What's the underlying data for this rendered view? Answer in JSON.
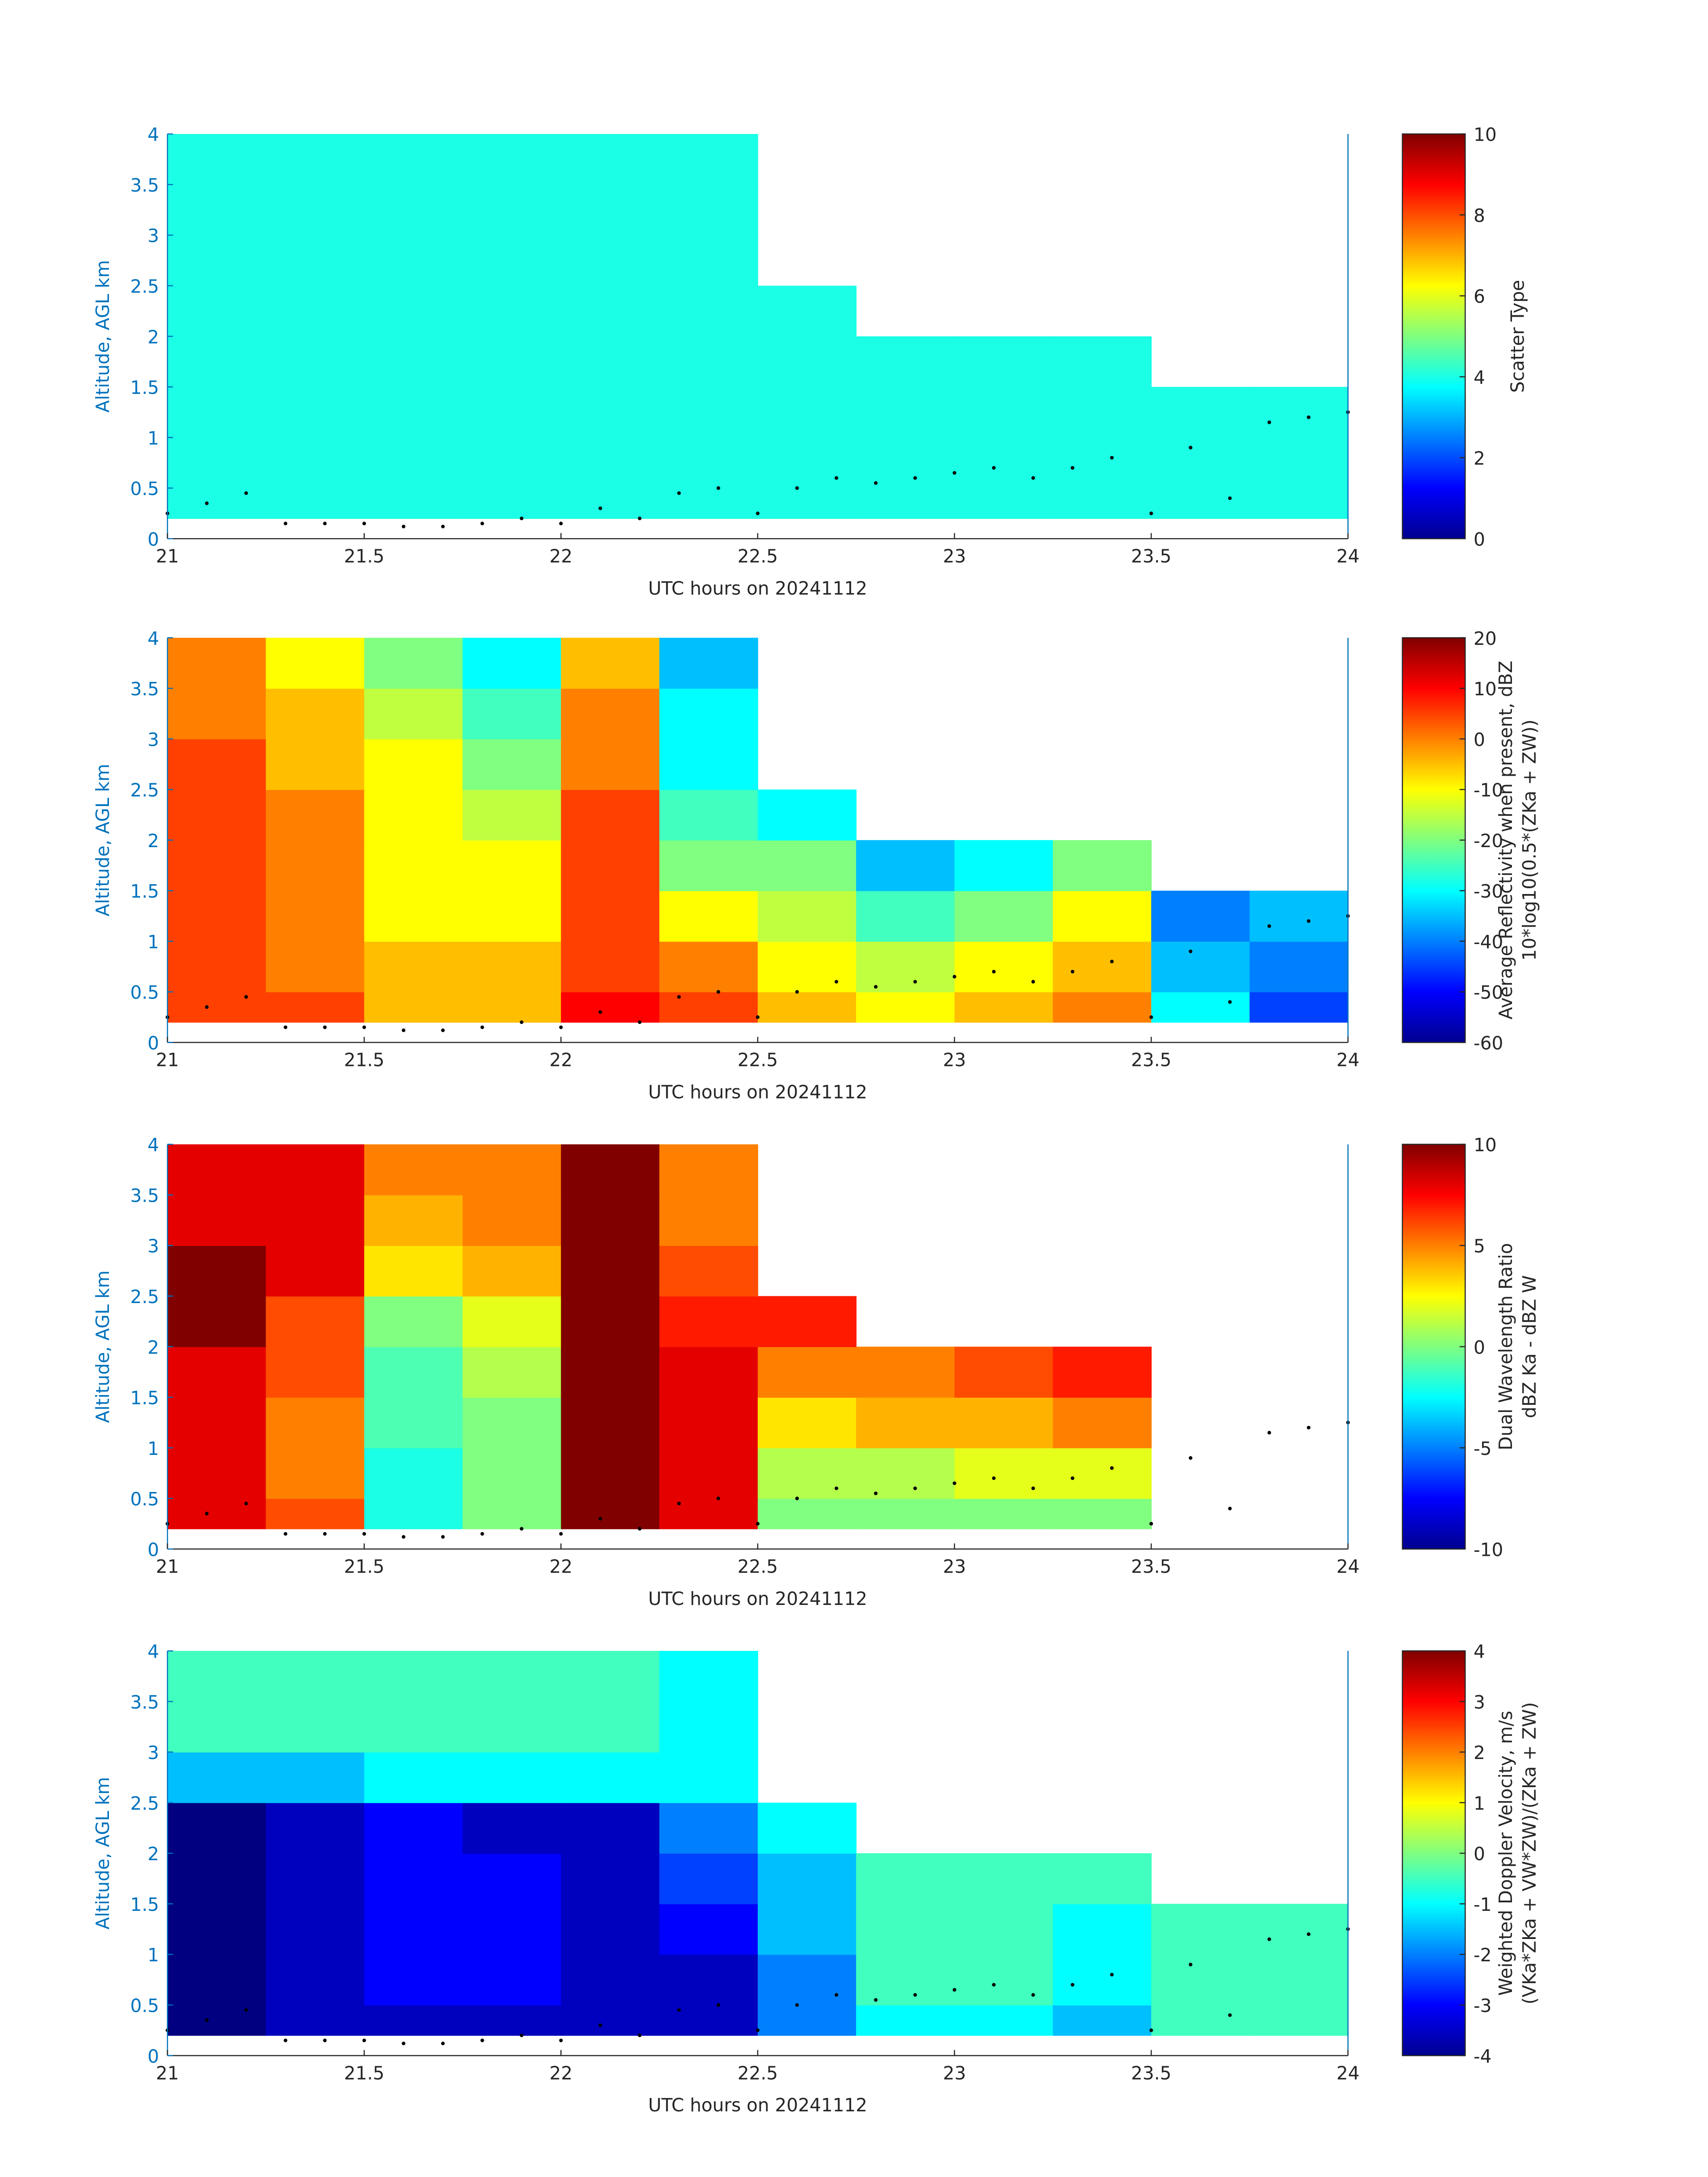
{
  "chart_data": [
    {
      "type": "heatmap",
      "xlabel": "UTC hours on 20241112",
      "ylabel": "Altitude, AGL km",
      "colorbar_label": [
        "Scatter Type"
      ],
      "xlim": [
        21,
        24
      ],
      "xticks": [
        21,
        21.5,
        22,
        22.5,
        23,
        23.5,
        24
      ],
      "ylim": [
        0,
        4
      ],
      "yticks": [
        0,
        0.5,
        1,
        1.5,
        2,
        2.5,
        3,
        3.5,
        4
      ],
      "clim": [
        0,
        10
      ],
      "cticks": [
        0,
        2,
        4,
        6,
        8,
        10
      ],
      "colormap": "jet",
      "xbins": [
        21,
        21.25,
        21.5,
        21.75,
        22,
        22.25,
        22.5,
        22.75,
        23,
        23.25,
        23.5,
        23.75,
        24
      ],
      "ybins": [
        0.2,
        0.5,
        1,
        1.5,
        2,
        2.5,
        3,
        3.5,
        4
      ],
      "z": [
        [
          4,
          4,
          4,
          4,
          4,
          4,
          4,
          4,
          4,
          4,
          4,
          4
        ],
        [
          4,
          4,
          4,
          4,
          4,
          4,
          4,
          4,
          4,
          4,
          4,
          4
        ],
        [
          4,
          4,
          4,
          4,
          4,
          4,
          4,
          4,
          4,
          4,
          4,
          4
        ],
        [
          4,
          4,
          4,
          4,
          4,
          4,
          4,
          4,
          4,
          4,
          null,
          null
        ],
        [
          4,
          4,
          4,
          4,
          4,
          4,
          4,
          null,
          null,
          null,
          null,
          null
        ],
        [
          4,
          4,
          4,
          4,
          4,
          4,
          null,
          null,
          null,
          null,
          null,
          null
        ],
        [
          4,
          4,
          4,
          4,
          4,
          4,
          null,
          null,
          null,
          null,
          null,
          null
        ],
        [
          4,
          4,
          4,
          4,
          4,
          4,
          null,
          null,
          null,
          null,
          null,
          null
        ]
      ],
      "point_color": "#000000",
      "points_x": [
        21,
        21.1,
        21.2,
        21.3,
        21.4,
        21.5,
        21.6,
        21.7,
        21.8,
        21.9,
        22,
        22.1,
        22.2,
        22.3,
        22.4,
        22.5,
        22.6,
        22.7,
        22.8,
        22.9,
        23,
        23.1,
        23.2,
        23.3,
        23.4,
        23.5,
        23.6,
        23.7,
        23.8,
        23.9,
        24
      ],
      "points_y": [
        0.25,
        0.35,
        0.45,
        0.15,
        0.15,
        0.15,
        0.12,
        0.12,
        0.15,
        0.2,
        0.15,
        0.3,
        0.2,
        0.45,
        0.5,
        0.25,
        0.5,
        0.6,
        0.55,
        0.6,
        0.65,
        0.7,
        0.6,
        0.7,
        0.8,
        0.25,
        0.9,
        0.4,
        1.15,
        1.2,
        1.25
      ]
    },
    {
      "type": "heatmap",
      "xlabel": "UTC hours on 20241112",
      "ylabel": "Altitude, AGL km",
      "colorbar_label": [
        "Average Reflectivity when present, dBZ",
        "10*log10(0.5*(ZKa + ZW))"
      ],
      "xlim": [
        21,
        24
      ],
      "xticks": [
        21,
        21.5,
        22,
        22.5,
        23,
        23.5,
        24
      ],
      "ylim": [
        0,
        4
      ],
      "yticks": [
        0,
        0.5,
        1,
        1.5,
        2,
        2.5,
        3,
        3.5,
        4
      ],
      "clim": [
        -60,
        20
      ],
      "cticks": [
        -60,
        -50,
        -40,
        -30,
        -20,
        -10,
        0,
        10,
        20
      ],
      "colormap": "jet",
      "xbins": [
        21,
        21.25,
        21.5,
        21.75,
        22,
        22.25,
        22.5,
        22.75,
        23,
        23.25,
        23.5,
        23.75,
        24
      ],
      "ybins": [
        0.2,
        0.5,
        1,
        1.5,
        2,
        2.5,
        3,
        3.5,
        4
      ],
      "z": [
        [
          5,
          5,
          -5,
          -5,
          10,
          5,
          -5,
          -10,
          -5,
          0,
          -30,
          -45
        ],
        [
          5,
          0,
          -5,
          -5,
          5,
          0,
          -10,
          -15,
          -10,
          -5,
          -35,
          -40
        ],
        [
          5,
          0,
          -10,
          -10,
          5,
          -10,
          -15,
          -25,
          -20,
          -10,
          -40,
          -35
        ],
        [
          5,
          0,
          -10,
          -10,
          5,
          -20,
          -20,
          -35,
          -30,
          -20,
          null,
          null
        ],
        [
          5,
          0,
          -10,
          -15,
          5,
          -25,
          -30,
          null,
          null,
          null,
          null,
          null
        ],
        [
          5,
          -5,
          -10,
          -20,
          0,
          -30,
          null,
          null,
          null,
          null,
          null,
          null
        ],
        [
          0,
          -5,
          -15,
          -25,
          0,
          -30,
          null,
          null,
          null,
          null,
          null,
          null
        ],
        [
          0,
          -10,
          -20,
          -30,
          -5,
          -35,
          null,
          null,
          null,
          null,
          null,
          null
        ]
      ],
      "point_color": "#000000",
      "points_x": [
        21,
        21.1,
        21.2,
        21.3,
        21.4,
        21.5,
        21.6,
        21.7,
        21.8,
        21.9,
        22,
        22.1,
        22.2,
        22.3,
        22.4,
        22.5,
        22.6,
        22.7,
        22.8,
        22.9,
        23,
        23.1,
        23.2,
        23.3,
        23.4,
        23.5,
        23.6,
        23.7,
        23.8,
        23.9,
        24
      ],
      "points_y": [
        0.25,
        0.35,
        0.45,
        0.15,
        0.15,
        0.15,
        0.12,
        0.12,
        0.15,
        0.2,
        0.15,
        0.3,
        0.2,
        0.45,
        0.5,
        0.25,
        0.5,
        0.6,
        0.55,
        0.6,
        0.65,
        0.7,
        0.6,
        0.7,
        0.8,
        0.25,
        0.9,
        0.4,
        1.15,
        1.2,
        1.25
      ]
    },
    {
      "type": "heatmap",
      "xlabel": "UTC hours on 20241112",
      "ylabel": "Altitude, AGL km",
      "colorbar_label": [
        "Dual Wavelength Ratio",
        "dBZ Ka - dBZ W"
      ],
      "xlim": [
        21,
        24
      ],
      "xticks": [
        21,
        21.5,
        22,
        22.5,
        23,
        23.5,
        24
      ],
      "ylim": [
        0,
        4
      ],
      "yticks": [
        0,
        0.5,
        1,
        1.5,
        2,
        2.5,
        3,
        3.5,
        4
      ],
      "clim": [
        -10,
        10
      ],
      "cticks": [
        -10,
        -5,
        0,
        5,
        10
      ],
      "colormap": "jet",
      "xbins": [
        21,
        21.25,
        21.5,
        21.75,
        22,
        22.25,
        22.5,
        22.75,
        23,
        23.25,
        23.5,
        23.75,
        24
      ],
      "ybins": [
        0.2,
        0.5,
        1,
        1.5,
        2,
        2.5,
        3,
        3.5,
        4
      ],
      "z": [
        [
          8,
          6,
          -2,
          0,
          10,
          8,
          0,
          0,
          0,
          0,
          null,
          null
        ],
        [
          8,
          5,
          -2,
          0,
          10,
          8,
          1,
          1,
          2,
          2,
          null,
          null
        ],
        [
          8,
          5,
          -1,
          0,
          10,
          8,
          3,
          4,
          4,
          5,
          null,
          null
        ],
        [
          8,
          6,
          -1,
          1,
          10,
          8,
          5,
          5,
          6,
          7,
          null,
          null
        ],
        [
          10,
          6,
          0,
          2,
          10,
          7,
          7,
          null,
          null,
          null,
          null,
          null
        ],
        [
          10,
          8,
          3,
          4,
          10,
          6,
          null,
          null,
          null,
          null,
          null,
          null
        ],
        [
          8,
          8,
          4,
          5,
          10,
          5,
          null,
          null,
          null,
          null,
          null,
          null
        ],
        [
          8,
          8,
          5,
          5,
          10,
          5,
          null,
          null,
          null,
          null,
          null,
          null
        ]
      ],
      "point_color": "#000000",
      "points_x": [
        21,
        21.1,
        21.2,
        21.3,
        21.4,
        21.5,
        21.6,
        21.7,
        21.8,
        21.9,
        22,
        22.1,
        22.2,
        22.3,
        22.4,
        22.5,
        22.6,
        22.7,
        22.8,
        22.9,
        23,
        23.1,
        23.2,
        23.3,
        23.4,
        23.5,
        23.6,
        23.7,
        23.8,
        23.9,
        24
      ],
      "points_y": [
        0.25,
        0.35,
        0.45,
        0.15,
        0.15,
        0.15,
        0.12,
        0.12,
        0.15,
        0.2,
        0.15,
        0.3,
        0.2,
        0.45,
        0.5,
        0.25,
        0.5,
        0.6,
        0.55,
        0.6,
        0.65,
        0.7,
        0.6,
        0.7,
        0.8,
        0.25,
        0.9,
        0.4,
        1.15,
        1.2,
        1.25
      ]
    },
    {
      "type": "heatmap",
      "xlabel": "UTC hours on 20241112",
      "ylabel": "Altitude, AGL km",
      "colorbar_label": [
        "Weighted Doppler Velocity, m/s",
        "(VKa*ZKa + VW*ZW)/(ZKa + ZW)"
      ],
      "xlim": [
        21,
        24
      ],
      "xticks": [
        21,
        21.5,
        22,
        22.5,
        23,
        23.5,
        24
      ],
      "ylim": [
        0,
        4
      ],
      "yticks": [
        0,
        0.5,
        1,
        1.5,
        2,
        2.5,
        3,
        3.5,
        4
      ],
      "clim": [
        -4,
        4
      ],
      "cticks": [
        -4,
        -3,
        -2,
        -1,
        0,
        1,
        2,
        3,
        4
      ],
      "colormap": "jet",
      "xbins": [
        21,
        21.25,
        21.5,
        21.75,
        22,
        22.25,
        22.5,
        22.75,
        23,
        23.25,
        23.5,
        23.75,
        24
      ],
      "ybins": [
        0.2,
        0.5,
        1,
        1.5,
        2,
        2.5,
        3,
        3.5,
        4
      ],
      "z": [
        [
          -4,
          -3.5,
          -3.5,
          -3.5,
          -3.5,
          -3.5,
          -2,
          -1,
          -1,
          -1.5,
          -0.5,
          -0.5
        ],
        [
          -4,
          -3.5,
          -3,
          -3,
          -3.5,
          -3.5,
          -2,
          -0.5,
          -0.5,
          -1,
          -0.5,
          -0.5
        ],
        [
          -4,
          -3.5,
          -3,
          -3,
          -3.5,
          -3,
          -1.5,
          -0.5,
          -0.5,
          -1,
          -0.5,
          -0.5
        ],
        [
          -4,
          -3.5,
          -3,
          -3,
          -3.5,
          -2.5,
          -1.5,
          -0.5,
          -0.5,
          -0.5,
          null,
          null
        ],
        [
          -4,
          -3.5,
          -3,
          -3.5,
          -3.5,
          -2,
          -1,
          null,
          null,
          null,
          null,
          null
        ],
        [
          -1.5,
          -1.5,
          -1,
          -1,
          -1,
          -1,
          null,
          null,
          null,
          null,
          null,
          null
        ],
        [
          -0.5,
          -0.5,
          -0.5,
          -0.5,
          -0.5,
          -1,
          null,
          null,
          null,
          null,
          null,
          null
        ],
        [
          -0.5,
          -0.5,
          -0.5,
          -0.5,
          -0.5,
          -1,
          null,
          null,
          null,
          null,
          null,
          null
        ]
      ],
      "point_color": "#000000",
      "points_x": [
        21,
        21.1,
        21.2,
        21.3,
        21.4,
        21.5,
        21.6,
        21.7,
        21.8,
        21.9,
        22,
        22.1,
        22.2,
        22.3,
        22.4,
        22.5,
        22.6,
        22.7,
        22.8,
        22.9,
        23,
        23.1,
        23.2,
        23.3,
        23.4,
        23.5,
        23.6,
        23.7,
        23.8,
        23.9,
        24
      ],
      "points_y": [
        0.25,
        0.35,
        0.45,
        0.15,
        0.15,
        0.15,
        0.12,
        0.12,
        0.15,
        0.2,
        0.15,
        0.3,
        0.2,
        0.45,
        0.5,
        0.25,
        0.5,
        0.6,
        0.55,
        0.6,
        0.65,
        0.7,
        0.6,
        0.7,
        0.8,
        0.25,
        0.9,
        0.4,
        1.15,
        1.2,
        1.25
      ]
    }
  ]
}
